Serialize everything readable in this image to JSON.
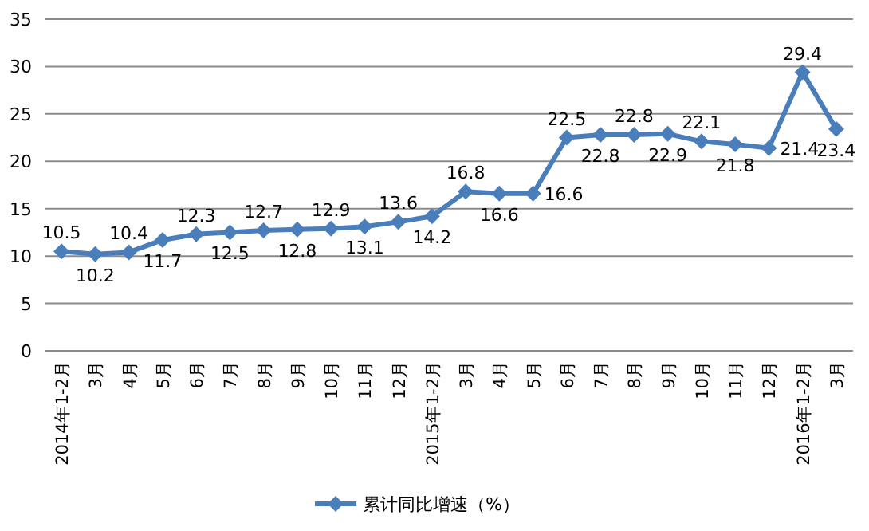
{
  "chart_data": {
    "type": "line",
    "categories": [
      "2014年1-2月",
      "3月",
      "4月",
      "5月",
      "6月",
      "7月",
      "8月",
      "9月",
      "10月",
      "11月",
      "12月",
      "2015年1-2月",
      "3月",
      "4月",
      "5月",
      "6月",
      "7月",
      "8月",
      "9月",
      "10月",
      "11月",
      "12月",
      "2016年1-2月",
      "3月"
    ],
    "series": [
      {
        "name": "累计同比增速（%）",
        "color": "#4a7ebb",
        "values": [
          10.5,
          10.2,
          10.4,
          11.7,
          12.3,
          12.5,
          12.7,
          12.8,
          12.9,
          13.1,
          13.6,
          14.2,
          16.8,
          16.6,
          16.6,
          22.5,
          22.8,
          22.8,
          22.9,
          22.1,
          21.8,
          21.4,
          29.4,
          23.4
        ]
      }
    ],
    "ylim": [
      0,
      35
    ],
    "yticks": [
      0,
      5,
      10,
      15,
      20,
      25,
      30,
      35
    ],
    "grid": "y",
    "legend": "bottom",
    "marker": "diamond",
    "line_style": "solid",
    "data_labels": true
  }
}
